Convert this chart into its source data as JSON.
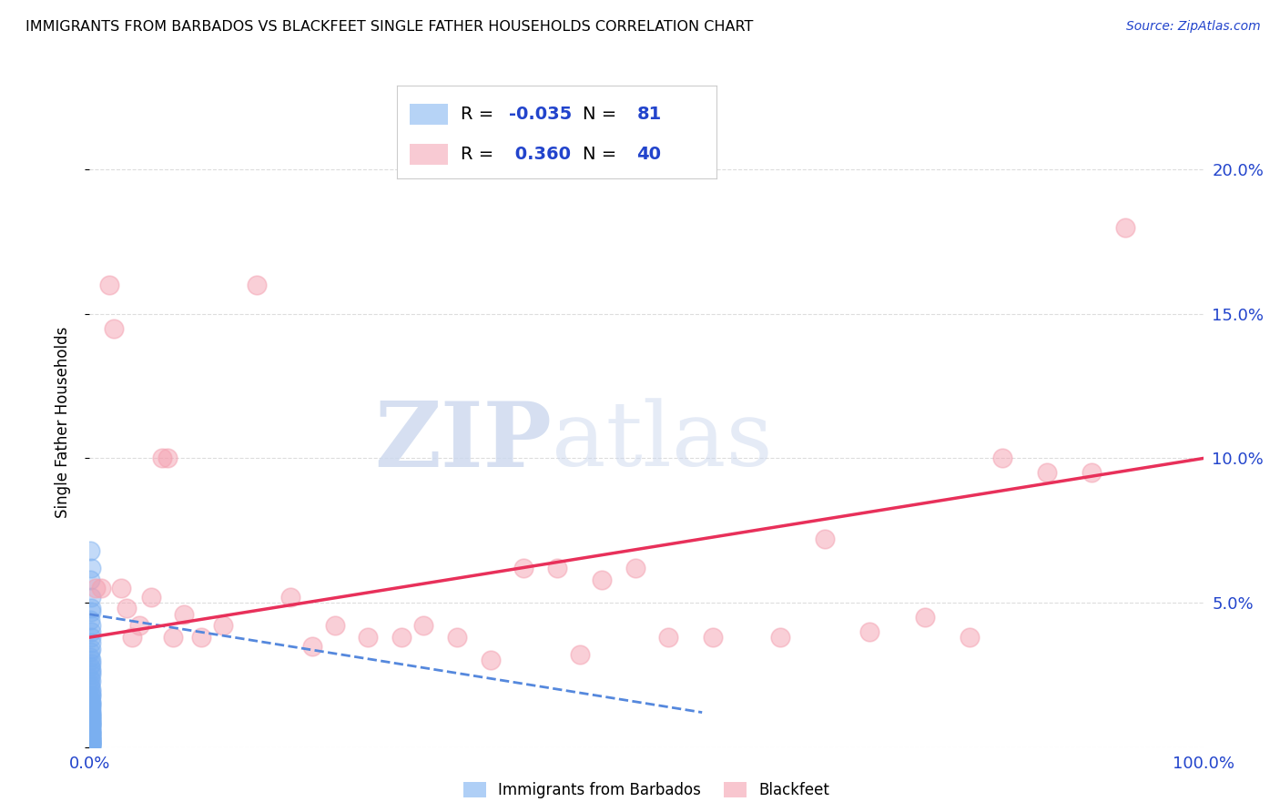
{
  "title": "IMMIGRANTS FROM BARBADOS VS BLACKFEET SINGLE FATHER HOUSEHOLDS CORRELATION CHART",
  "source": "Source: ZipAtlas.com",
  "ylabel": "Single Father Households",
  "watermark_zip": "ZIP",
  "watermark_atlas": "atlas",
  "blue_label": "Immigrants from Barbados",
  "pink_label": "Blackfeet",
  "blue_R": -0.035,
  "blue_N": 81,
  "pink_R": 0.36,
  "pink_N": 40,
  "xlim": [
    0.0,
    1.0
  ],
  "ylim": [
    0.0,
    0.225
  ],
  "yticks": [
    0.0,
    0.05,
    0.1,
    0.15,
    0.2
  ],
  "ytick_labels": [
    "",
    "5.0%",
    "10.0%",
    "15.0%",
    "20.0%"
  ],
  "blue_color": "#7aaff0",
  "pink_color": "#f4a0b0",
  "blue_line_color": "#5588dd",
  "pink_line_color": "#e8305a",
  "background_color": "#ffffff",
  "grid_color": "#dddddd",
  "blue_scatter_x": [
    0.0005,
    0.001,
    0.0008,
    0.0015,
    0.001,
    0.0012,
    0.0007,
    0.001,
    0.0009,
    0.0011,
    0.0013,
    0.001,
    0.0006,
    0.0008,
    0.001,
    0.0015,
    0.0007,
    0.001,
    0.0009,
    0.001,
    0.0008,
    0.001,
    0.0005,
    0.0007,
    0.001,
    0.0012,
    0.0009,
    0.001,
    0.0008,
    0.001,
    0.0006,
    0.001,
    0.0009,
    0.001,
    0.0007,
    0.001,
    0.0008,
    0.001,
    0.001,
    0.0009,
    0.001,
    0.0012,
    0.001,
    0.0008,
    0.001,
    0.001,
    0.0007,
    0.001,
    0.001,
    0.0009,
    0.001,
    0.0008,
    0.001,
    0.0007,
    0.001,
    0.0009,
    0.001,
    0.0008,
    0.001,
    0.001,
    0.0006,
    0.001,
    0.001,
    0.0008,
    0.001,
    0.0009,
    0.001,
    0.0007,
    0.001,
    0.001,
    0.0008,
    0.001,
    0.001,
    0.0009,
    0.001,
    0.0007,
    0.001,
    0.001,
    0.0008,
    0.001,
    0.001
  ],
  "blue_scatter_y": [
    0.068,
    0.062,
    0.058,
    0.052,
    0.048,
    0.047,
    0.044,
    0.042,
    0.04,
    0.038,
    0.036,
    0.034,
    0.033,
    0.031,
    0.03,
    0.029,
    0.028,
    0.027,
    0.026,
    0.025,
    0.024,
    0.023,
    0.022,
    0.021,
    0.02,
    0.019,
    0.018,
    0.018,
    0.017,
    0.016,
    0.016,
    0.015,
    0.015,
    0.014,
    0.014,
    0.013,
    0.013,
    0.012,
    0.012,
    0.011,
    0.011,
    0.01,
    0.01,
    0.01,
    0.009,
    0.009,
    0.009,
    0.008,
    0.008,
    0.008,
    0.007,
    0.007,
    0.007,
    0.006,
    0.006,
    0.006,
    0.005,
    0.005,
    0.005,
    0.005,
    0.004,
    0.004,
    0.004,
    0.004,
    0.003,
    0.003,
    0.003,
    0.003,
    0.002,
    0.002,
    0.002,
    0.002,
    0.001,
    0.001,
    0.001,
    0.001,
    0.001,
    0.001,
    0.001,
    0.0,
    0.0
  ],
  "blue_line_x0": 0.0,
  "blue_line_x1": 0.55,
  "blue_line_y0": 0.046,
  "blue_line_y1": 0.012,
  "pink_scatter_x": [
    0.005,
    0.01,
    0.018,
    0.022,
    0.028,
    0.033,
    0.038,
    0.045,
    0.055,
    0.065,
    0.07,
    0.075,
    0.085,
    0.1,
    0.12,
    0.15,
    0.18,
    0.2,
    0.22,
    0.25,
    0.28,
    0.3,
    0.33,
    0.36,
    0.39,
    0.42,
    0.44,
    0.46,
    0.49,
    0.52,
    0.56,
    0.62,
    0.66,
    0.7,
    0.75,
    0.79,
    0.82,
    0.86,
    0.9,
    0.93
  ],
  "pink_scatter_y": [
    0.055,
    0.055,
    0.16,
    0.145,
    0.055,
    0.048,
    0.038,
    0.042,
    0.052,
    0.1,
    0.1,
    0.038,
    0.046,
    0.038,
    0.042,
    0.16,
    0.052,
    0.035,
    0.042,
    0.038,
    0.038,
    0.042,
    0.038,
    0.03,
    0.062,
    0.062,
    0.032,
    0.058,
    0.062,
    0.038,
    0.038,
    0.038,
    0.072,
    0.04,
    0.045,
    0.038,
    0.1,
    0.095,
    0.095,
    0.18
  ],
  "pink_line_x0": 0.0,
  "pink_line_x1": 1.0,
  "pink_line_y0": 0.038,
  "pink_line_y1": 0.1
}
